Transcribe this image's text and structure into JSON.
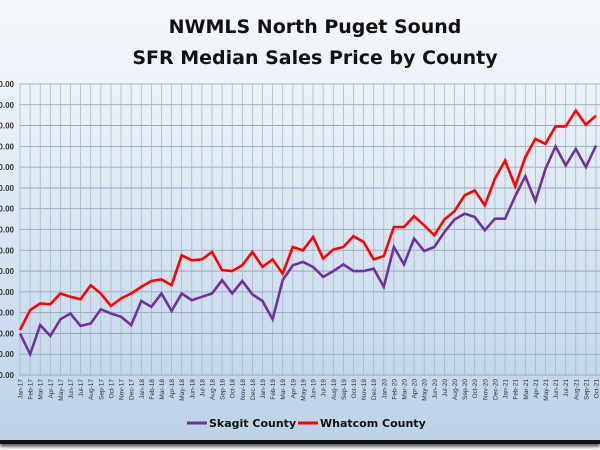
{
  "chart_data": {
    "type": "line",
    "title": "NWMLS North Puget Sound",
    "subtitle": "SFR Median Sales Price by County",
    "xlabel": "",
    "ylabel": "",
    "ylim": [
      300000,
      650000
    ],
    "ytick_step": 25000,
    "grid": true,
    "legend_position": "bottom",
    "categories": [
      "Jan-17",
      "Feb-17",
      "Mar-17",
      "Apr-17",
      "May-17",
      "Jun-17",
      "Jul-17",
      "Aug-17",
      "Sep-17",
      "Oct-17",
      "Nov-17",
      "Dec-17",
      "Jan-18",
      "Feb-18",
      "Mar-18",
      "Apr-18",
      "May-18",
      "Jun-18",
      "Jul-18",
      "Aug-18",
      "Sep-18",
      "Oct-18",
      "Nov-18",
      "Dec-18",
      "Jan-19",
      "Feb-19",
      "Mar-19",
      "Apr-19",
      "May-19",
      "Jun-19",
      "Jul-19",
      "Aug-19",
      "Sep-19",
      "Oct-19",
      "Nov-19",
      "Dec-19",
      "Jan-20",
      "Feb-20",
      "Mar-20",
      "Apr-20",
      "May-20",
      "Jun-20",
      "Jul-20",
      "Aug-20",
      "Sep-20",
      "Oct-20",
      "Nov-20",
      "Dec-20",
      "Jan-21",
      "Feb-21",
      "Mar-21",
      "Apr-21",
      "May-21",
      "Jun-21",
      "Jul-21",
      "Aug-21",
      "Sep-21",
      "Oct-21"
    ],
    "series": [
      {
        "name": "Skagit County",
        "color": "#7030a0",
        "values": [
          350000,
          325000,
          360000,
          347000,
          367000,
          374000,
          359000,
          362000,
          379000,
          374000,
          370000,
          360000,
          389000,
          382000,
          398000,
          377000,
          398000,
          390000,
          394000,
          398000,
          414000,
          398000,
          413000,
          397000,
          389000,
          367000,
          414000,
          432000,
          436000,
          430000,
          418000,
          425000,
          433000,
          425000,
          425000,
          428000,
          406000,
          454000,
          433000,
          464000,
          449000,
          454000,
          472000,
          487000,
          494000,
          490000,
          474000,
          488000,
          488000,
          515000,
          539000,
          509000,
          548000,
          575000,
          552000,
          572000,
          550000,
          576000
        ]
      },
      {
        "name": "Whatcom County",
        "color": "#ff0000",
        "values": [
          354000,
          378000,
          386000,
          385000,
          398000,
          394000,
          391000,
          408000,
          398000,
          383000,
          392000,
          398000,
          406000,
          413000,
          415000,
          408000,
          444000,
          438000,
          439000,
          448000,
          426000,
          425000,
          432000,
          448000,
          430000,
          439000,
          422000,
          454000,
          450000,
          466000,
          440000,
          451000,
          454000,
          467000,
          460000,
          439000,
          443000,
          478000,
          478000,
          491000,
          480000,
          468000,
          487000,
          497000,
          516000,
          522000,
          504000,
          536000,
          558000,
          527000,
          562000,
          584000,
          578000,
          599000,
          599000,
          618000,
          601000,
          612000
        ]
      }
    ]
  }
}
